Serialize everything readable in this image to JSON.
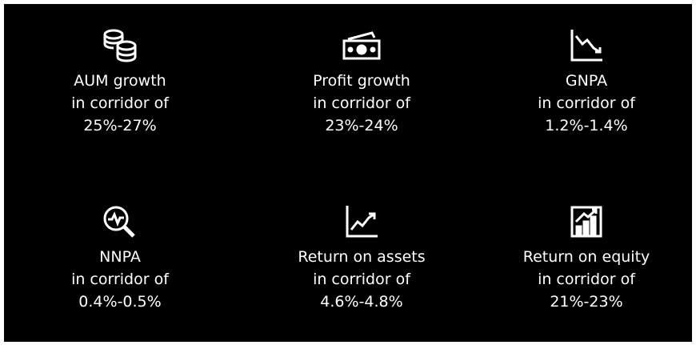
{
  "items": [
    {
      "lines": [
        "AUM growth",
        "in corridor of",
        "25%-27%"
      ]
    },
    {
      "lines": [
        "Profit growth",
        "in corridor of",
        "23%-24%"
      ]
    },
    {
      "lines": [
        "GNPA",
        "in corridor of",
        "1.2%-1.4%"
      ]
    },
    {
      "lines": [
        "NNPA",
        "in corridor of",
        "0.4%-0.5%"
      ]
    },
    {
      "lines": [
        "Return on assets",
        "in corridor of",
        "4.6%-4.8%"
      ]
    },
    {
      "lines": [
        "Return on equity",
        "in corridor of",
        "21%-23%"
      ]
    }
  ]
}
